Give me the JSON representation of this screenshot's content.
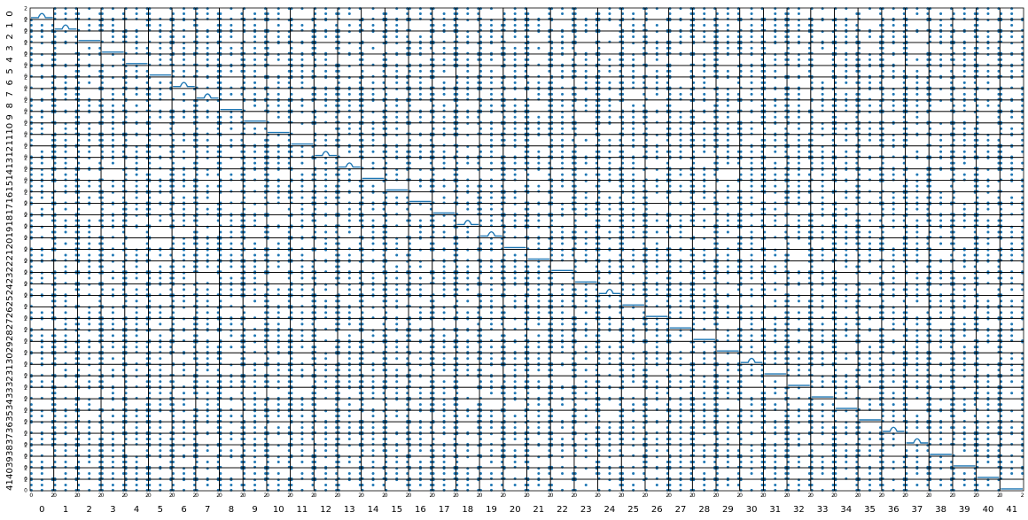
{
  "chart_data": {
    "type": "scatter",
    "title": "",
    "variables": [
      "0",
      "1",
      "2",
      "3",
      "4",
      "5",
      "6",
      "7",
      "8",
      "9",
      "10",
      "11",
      "12",
      "13",
      "14",
      "15",
      "16",
      "17",
      "18",
      "19",
      "20",
      "21",
      "22",
      "23",
      "24",
      "25",
      "26",
      "27",
      "28",
      "29",
      "30",
      "31",
      "32",
      "33",
      "34",
      "35",
      "36",
      "37",
      "38",
      "39",
      "40",
      "41"
    ],
    "xlabel": "",
    "ylabel": "",
    "x_range": [
      0,
      2
    ],
    "y_range": [
      0,
      2
    ],
    "tick_labels": [
      "0",
      "2"
    ],
    "point_values": [
      0,
      1,
      2
    ],
    "diagonal": "kde",
    "diagonal_peaked_variables": [
      "0",
      "1",
      "6",
      "7",
      "12",
      "13",
      "18",
      "19",
      "24",
      "30",
      "36",
      "37"
    ],
    "grid": false,
    "legend": "none",
    "colors": {
      "marker": "#1f77b4",
      "kde": "#1f77b4",
      "frame": "#000000"
    }
  }
}
